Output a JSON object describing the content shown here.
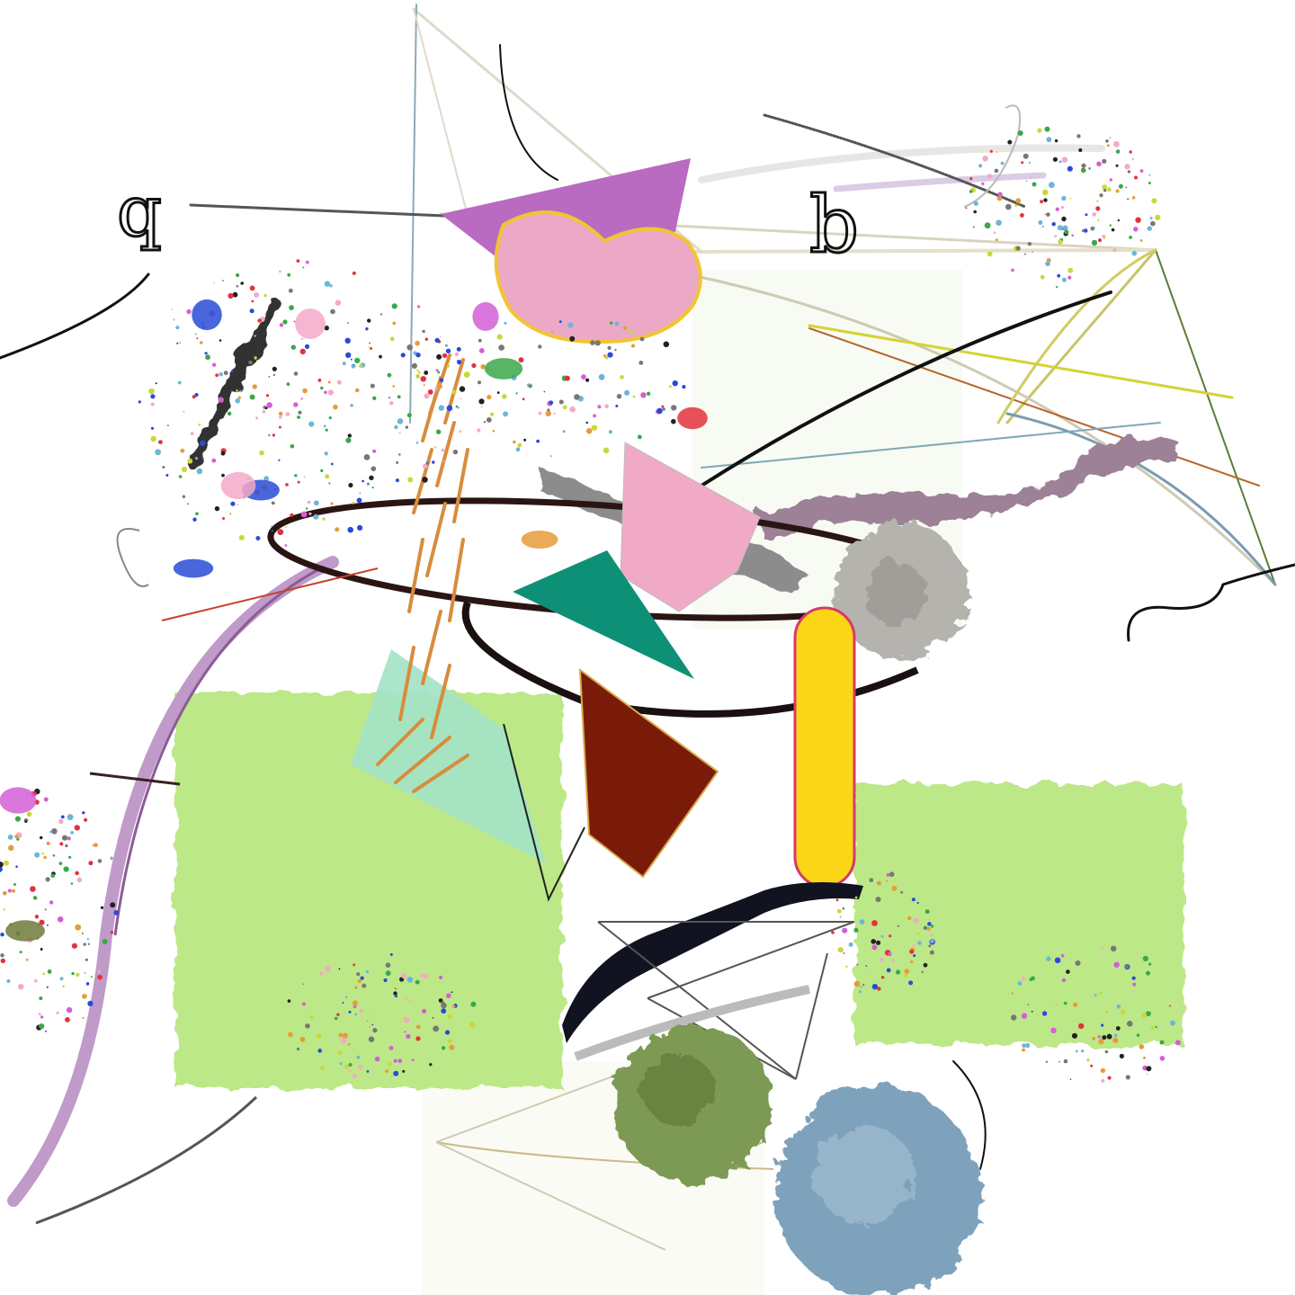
{
  "artwork": {
    "letters": {
      "left": "q",
      "right": "b"
    },
    "colors": {
      "background": "#ffffff",
      "lime": "#bde887",
      "pale_lime": "#f6faf0",
      "pink": "#eba9c5",
      "pink_outline": "#f3c431",
      "violet": "#b86bc0",
      "teal": "#0e9077",
      "mint": "#a4e3c6",
      "maroon": "#7a1b0a",
      "yellow": "#fbd617",
      "yellow_outline": "#d63a6a",
      "gray_blob": "#b5b3ae",
      "olive": "#7d9a54",
      "blue_gray": "#7ea2bc",
      "mauve": "#9c8197",
      "ink": "#111111",
      "orange": "#d88c3d"
    },
    "shapes": [
      "violet-triangle",
      "pink-bean",
      "pink-quad",
      "teal-triangle",
      "mint-triangle",
      "maroon-quad",
      "yellow-capsule",
      "lime-square-left",
      "lime-square-right",
      "gray-blob",
      "olive-blob",
      "blue-gray-blob",
      "black-ellipse-ring",
      "mauve-brush-stroke",
      "black-brush-stroke",
      "purple-arc"
    ]
  }
}
